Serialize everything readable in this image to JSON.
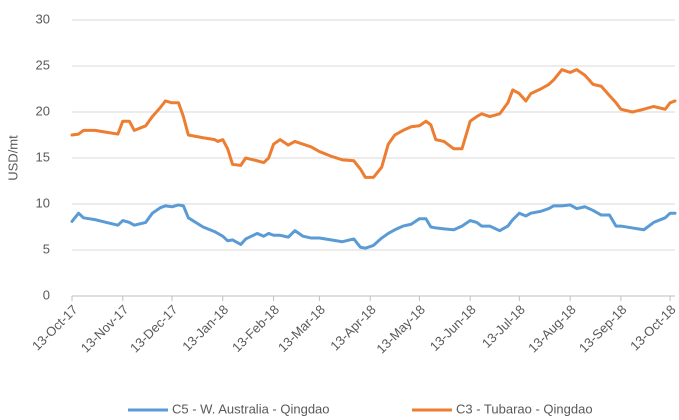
{
  "chart_data": {
    "type": "line",
    "y_label": "USD/mt",
    "x": [
      "2017-10-13",
      "2017-10-17",
      "2017-10-20",
      "2017-10-27",
      "2017-11-03",
      "2017-11-10",
      "2017-11-13",
      "2017-11-17",
      "2017-11-20",
      "2017-11-27",
      "2017-12-01",
      "2017-12-06",
      "2017-12-09",
      "2017-12-13",
      "2017-12-17",
      "2017-12-20",
      "2017-12-23",
      "2018-01-01",
      "2018-01-08",
      "2018-01-10",
      "2018-01-13",
      "2018-01-16",
      "2018-01-19",
      "2018-01-24",
      "2018-01-27",
      "2018-02-03",
      "2018-02-07",
      "2018-02-10",
      "2018-02-13",
      "2018-02-17",
      "2018-02-22",
      "2018-02-26",
      "2018-03-03",
      "2018-03-08",
      "2018-03-13",
      "2018-03-20",
      "2018-03-27",
      "2018-04-03",
      "2018-04-07",
      "2018-04-10",
      "2018-04-15",
      "2018-04-20",
      "2018-04-24",
      "2018-04-28",
      "2018-05-03",
      "2018-05-08",
      "2018-05-13",
      "2018-05-17",
      "2018-05-20",
      "2018-05-23",
      "2018-05-28",
      "2018-06-03",
      "2018-06-08",
      "2018-06-13",
      "2018-06-17",
      "2018-06-20",
      "2018-06-25",
      "2018-07-01",
      "2018-07-06",
      "2018-07-09",
      "2018-07-13",
      "2018-07-17",
      "2018-07-20",
      "2018-07-26",
      "2018-07-31",
      "2018-08-03",
      "2018-08-08",
      "2018-08-13",
      "2018-08-17",
      "2018-08-22",
      "2018-08-27",
      "2018-09-01",
      "2018-09-06",
      "2018-09-10",
      "2018-09-13",
      "2018-09-20",
      "2018-09-27",
      "2018-10-03",
      "2018-10-10",
      "2018-10-13",
      "2018-10-16"
    ],
    "series": [
      {
        "name": "C5 - W. Australia - Qingdao",
        "color": "#5b9bd5",
        "values": [
          8.1,
          9,
          8.5,
          8.3,
          8,
          7.7,
          8.2,
          8,
          7.7,
          8,
          9,
          9.6,
          9.8,
          9.7,
          9.9,
          9.8,
          8.5,
          7.5,
          7,
          6.8,
          6.5,
          6,
          6.1,
          5.6,
          6.2,
          6.8,
          6.5,
          6.8,
          6.6,
          6.6,
          6.4,
          7.1,
          6.5,
          6.3,
          6.3,
          6.1,
          5.9,
          6.2,
          5.3,
          5.2,
          5.5,
          6.3,
          6.8,
          7.2,
          7.6,
          7.8,
          8.4,
          8.4,
          7.5,
          7.4,
          7.3,
          7.2,
          7.6,
          8.2,
          8,
          7.6,
          7.6,
          7.1,
          7.6,
          8.3,
          9,
          8.7,
          9,
          9.2,
          9.5,
          9.8,
          9.8,
          9.9,
          9.5,
          9.7,
          9.3,
          8.8,
          8.8,
          7.6,
          7.6,
          7.4,
          7.2,
          8,
          8.5,
          9,
          9
        ]
      },
      {
        "name": "C3 - Tubarao - Qingdao",
        "color": "#ed7d31",
        "values": [
          17.5,
          17.6,
          18,
          18,
          17.8,
          17.6,
          19,
          19,
          18,
          18.5,
          19.5,
          20.5,
          21.2,
          21,
          21,
          19.5,
          17.5,
          17.2,
          17,
          16.8,
          17,
          16,
          14.3,
          14.2,
          15,
          14.7,
          14.5,
          15,
          16.5,
          17,
          16.4,
          16.8,
          16.5,
          16.2,
          15.7,
          15.2,
          14.8,
          14.7,
          13.8,
          12.9,
          12.9,
          14,
          16.5,
          17.5,
          18,
          18.4,
          18.5,
          19,
          18.6,
          17,
          16.8,
          16,
          16,
          19,
          19.5,
          19.8,
          19.5,
          19.8,
          21,
          22.4,
          22,
          21.2,
          22,
          22.5,
          23,
          23.5,
          24.6,
          24.3,
          24.6,
          24,
          23,
          22.8,
          21.8,
          21,
          20.3,
          20,
          20.3,
          20.6,
          20.3,
          21,
          21.2
        ]
      }
    ],
    "xlim": [
      "2017-10-13",
      "2018-10-16"
    ],
    "xticks": [
      {
        "value": "2017-10-13",
        "label": "13-Oct-17"
      },
      {
        "value": "2017-11-13",
        "label": "13-Nov-17"
      },
      {
        "value": "2017-12-13",
        "label": "13-Dec-17"
      },
      {
        "value": "2018-01-13",
        "label": "13-Jan-18"
      },
      {
        "value": "2018-02-13",
        "label": "13-Feb-18"
      },
      {
        "value": "2018-03-13",
        "label": "13-Mar-18"
      },
      {
        "value": "2018-04-13",
        "label": "13-Apr-18"
      },
      {
        "value": "2018-05-13",
        "label": "13-May-18"
      },
      {
        "value": "2018-06-13",
        "label": "13-Jun-18"
      },
      {
        "value": "2018-07-13",
        "label": "13-Jul-18"
      },
      {
        "value": "2018-08-13",
        "label": "13-Aug-18"
      },
      {
        "value": "2018-09-13",
        "label": "13-Sep-18"
      },
      {
        "value": "2018-10-13",
        "label": "13-Oct-18"
      }
    ],
    "ylim": [
      0,
      30
    ],
    "yticks": [
      0,
      5,
      10,
      15,
      20,
      25,
      30
    ],
    "grid": true,
    "legend": "bottom"
  }
}
